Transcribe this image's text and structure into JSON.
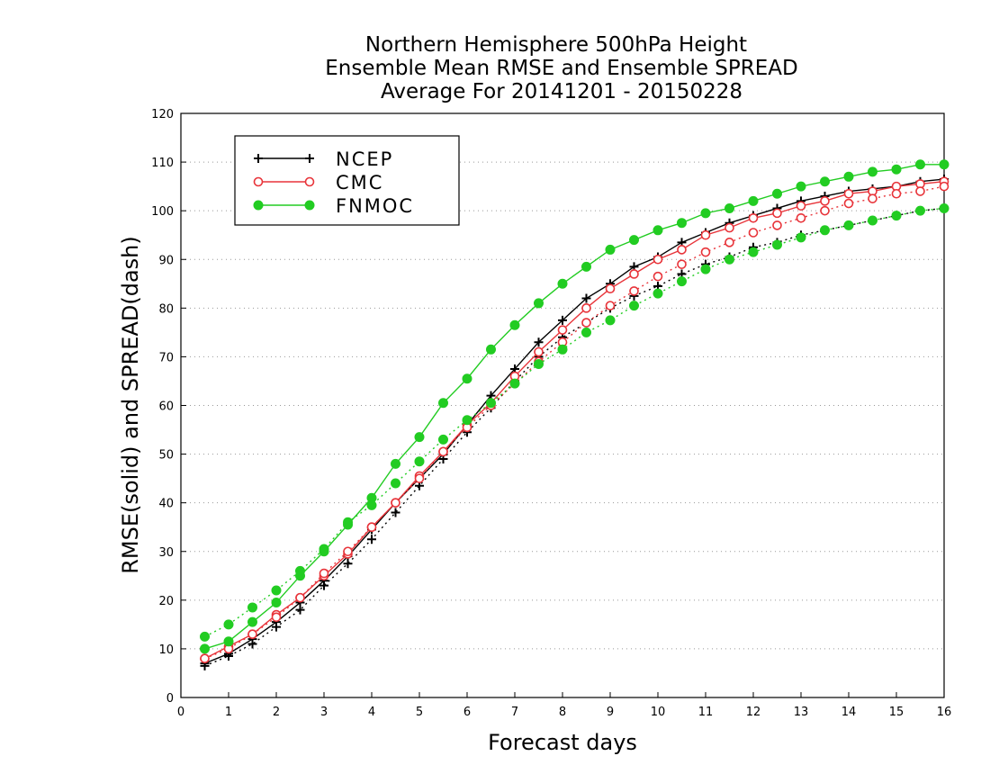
{
  "chart_data": {
    "type": "line",
    "title": [
      "Northern Hemisphere 500hPa Height",
      "Ensemble Mean RMSE and Ensemble SPREAD",
      "Average For 20141201 - 20150228"
    ],
    "xlabel": "Forecast days",
    "ylabel": "RMSE(solid) and SPREAD(dash)",
    "xlim": [
      0,
      16
    ],
    "ylim": [
      0,
      120
    ],
    "xticks": [
      0,
      1,
      2,
      3,
      4,
      5,
      6,
      7,
      8,
      9,
      10,
      11,
      12,
      13,
      14,
      15,
      16
    ],
    "yticks": [
      0,
      10,
      20,
      30,
      40,
      50,
      60,
      70,
      80,
      90,
      100,
      110,
      120
    ],
    "grid": "horizontal dotted",
    "legend_position": "top-left",
    "x": [
      0.5,
      1,
      1.5,
      2,
      2.5,
      3,
      3.5,
      4,
      4.5,
      5,
      5.5,
      6,
      6.5,
      7,
      7.5,
      8,
      8.5,
      9,
      9.5,
      10,
      10.5,
      11,
      11.5,
      12,
      12.5,
      13,
      13.5,
      14,
      14.5,
      15,
      15.5,
      16
    ],
    "series": [
      {
        "name": "NCEP",
        "color": "#000000",
        "marker": "plus",
        "style": "solid",
        "values": [
          7,
          9,
          12,
          15.5,
          19.5,
          24,
          29,
          34.5,
          40,
          45,
          50,
          56,
          62,
          67.5,
          73,
          77.5,
          82,
          85,
          88.5,
          90.5,
          93.5,
          95.5,
          97.5,
          99,
          100.5,
          102,
          103,
          104,
          104.5,
          105,
          106,
          106.5
        ]
      },
      {
        "name": "NCEP",
        "color": "#000000",
        "marker": "plus",
        "style": "dash",
        "values": [
          6.5,
          8.5,
          11,
          14.5,
          18,
          23,
          27.5,
          32.5,
          38,
          43.5,
          49,
          54.5,
          59.5,
          65,
          70,
          74,
          77,
          80,
          82.5,
          84.5,
          87,
          89,
          90.5,
          92.5,
          93.5,
          95,
          96,
          97,
          98,
          99,
          100,
          100.5
        ]
      },
      {
        "name": "CMC",
        "color": "#e8343a",
        "marker": "circle-open",
        "style": "solid",
        "values": [
          8,
          10.5,
          13,
          17,
          20.5,
          25,
          29.5,
          35,
          40,
          45.5,
          50.5,
          56,
          60.5,
          66,
          71,
          75.5,
          80,
          84,
          87,
          90,
          92,
          95,
          96.5,
          98.5,
          99.5,
          101,
          102,
          103.5,
          104,
          105,
          105.5,
          106
        ]
      },
      {
        "name": "CMC",
        "color": "#e8343a",
        "marker": "circle-open",
        "style": "dash",
        "values": [
          8,
          10,
          13,
          16.5,
          20.5,
          25.5,
          30,
          35,
          40,
          45,
          50.5,
          55.5,
          60,
          64.5,
          69,
          73,
          77,
          80.5,
          83.5,
          86.5,
          89,
          91.5,
          93.5,
          95.5,
          97,
          98.5,
          100,
          101.5,
          102.5,
          103.5,
          104,
          105
        ]
      },
      {
        "name": "FNMOC",
        "color": "#22cc22",
        "marker": "circle-filled",
        "style": "solid",
        "values": [
          10,
          11.5,
          15.5,
          19.5,
          25,
          30,
          35.5,
          41,
          48,
          53.5,
          60.5,
          65.5,
          71.5,
          76.5,
          81,
          85,
          88.5,
          92,
          94,
          96,
          97.5,
          99.5,
          100.5,
          102,
          103.5,
          105,
          106,
          107,
          108,
          108.5,
          109.5,
          109.5
        ]
      },
      {
        "name": "FNMOC",
        "color": "#22cc22",
        "marker": "circle-filled",
        "style": "dash",
        "values": [
          12.5,
          15,
          18.5,
          22,
          26,
          30.5,
          36,
          39.5,
          44,
          48.5,
          53,
          57,
          60.5,
          64.5,
          68.5,
          71.5,
          75,
          77.5,
          80.5,
          83,
          85.5,
          88,
          90,
          91.5,
          93,
          94.5,
          96,
          97,
          98,
          99,
          100,
          100.5
        ]
      }
    ],
    "legend": [
      {
        "name": "NCEP",
        "color": "#000000",
        "marker": "plus"
      },
      {
        "name": "CMC",
        "color": "#e8343a",
        "marker": "circle-open"
      },
      {
        "name": "FNMOC",
        "color": "#22cc22",
        "marker": "circle-filled"
      }
    ]
  }
}
